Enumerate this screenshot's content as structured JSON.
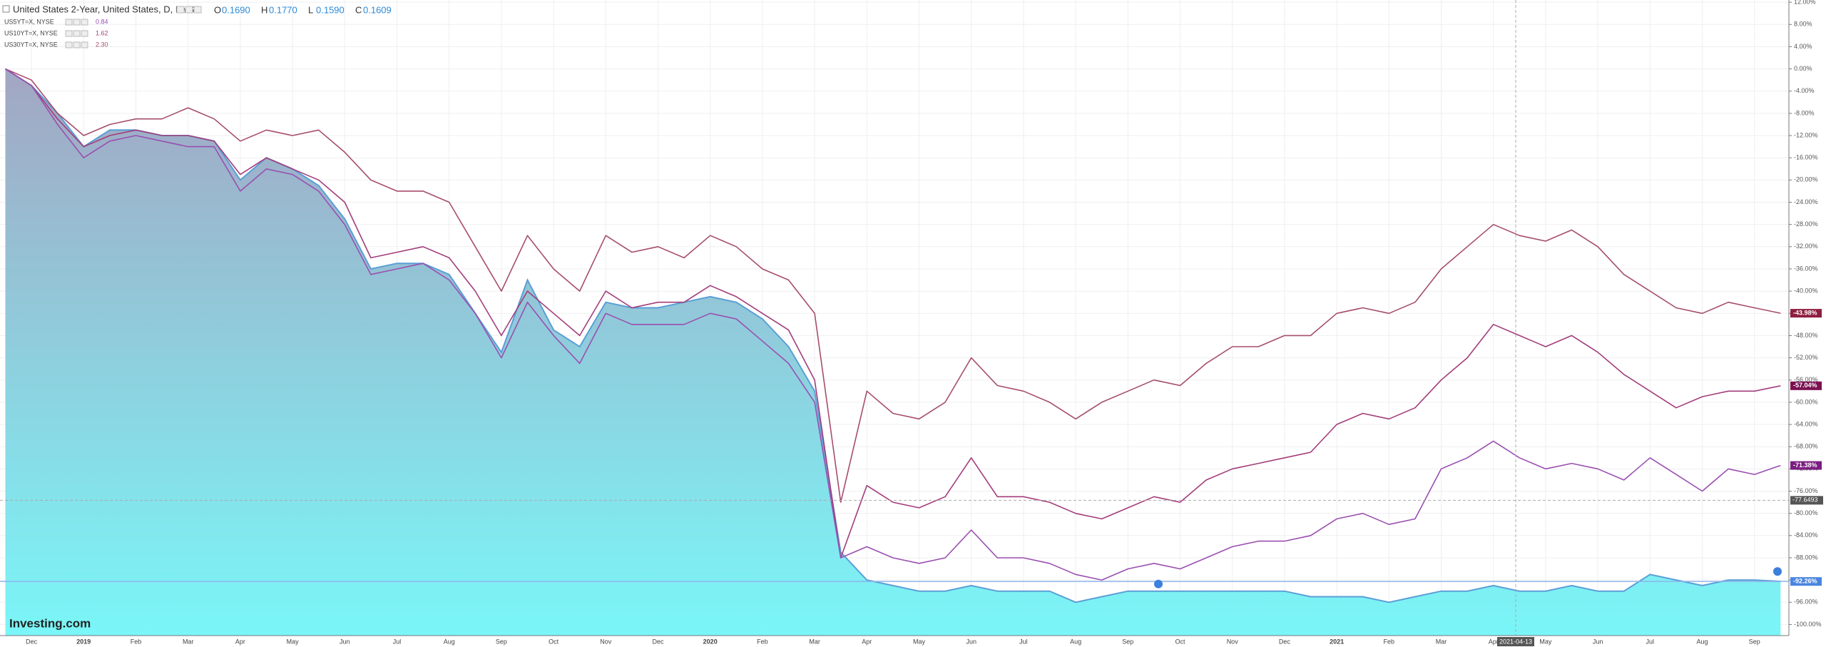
{
  "chart_data": {
    "type": "line",
    "title": "United States 2-Year, United States, D, NYSE",
    "ohlc": [
      {
        "key": "O",
        "value": "0.1690"
      },
      {
        "key": "H",
        "value": "0.1770"
      },
      {
        "key": "L",
        "value": "0.1590"
      },
      {
        "key": "C",
        "value": "0.1609"
      }
    ],
    "watermark": "Investing.com",
    "categories": [
      null,
      "Dec",
      null,
      "2019",
      null,
      "Feb",
      null,
      "Mar",
      null,
      "Apr",
      null,
      "May",
      null,
      "Jun",
      null,
      "Jul",
      null,
      "Aug",
      null,
      "Sep",
      null,
      "Oct",
      null,
      "Nov",
      null,
      "Dec",
      null,
      "2020",
      null,
      "Feb",
      null,
      "Mar",
      null,
      "Apr",
      null,
      "May",
      null,
      "Jun",
      null,
      "Jul",
      null,
      "Aug",
      null,
      "Sep",
      null,
      "Oct",
      null,
      "Nov",
      null,
      "Dec",
      null,
      "2021",
      null,
      "Feb",
      null,
      "Mar",
      null,
      "Apr",
      null,
      "May",
      null,
      "Jun",
      null,
      "Jul",
      null,
      "Aug",
      null,
      "Sep",
      null
    ],
    "series": [
      {
        "style": "area",
        "color": "#5b9fd6",
        "end_label": "-92.26%",
        "end_color": "#4a86e0",
        "values": [
          0,
          -3,
          -8,
          -14,
          -11,
          -11,
          -12,
          -12,
          -13,
          -20,
          -16,
          -18,
          -21,
          -27,
          -36,
          -35,
          -35,
          -37,
          -44,
          -51,
          -38,
          -47,
          -50,
          -42,
          -43,
          -43,
          -42,
          -41,
          -42,
          -45,
          -50,
          -58,
          -87,
          -92,
          -93,
          -94,
          -94,
          -93,
          -94,
          -94,
          -94,
          -96,
          -95,
          -94,
          -94,
          -94,
          -94,
          -94,
          -94,
          -94,
          -95,
          -95,
          -95,
          -96,
          -95,
          -94,
          -94,
          -93,
          -94,
          -94,
          -93,
          -94,
          -94,
          -91,
          -92,
          -93,
          -92,
          -92,
          -92.26
        ]
      },
      {
        "name": "US30YT=X, NYSE",
        "last": "2.30",
        "color": "#a64d6e",
        "end_label": "-43.98%",
        "end_color": "#8e1d3f",
        "values": [
          0,
          -2,
          -8,
          -12,
          -10,
          -9,
          -9,
          -7,
          -9,
          -13,
          -11,
          -12,
          -11,
          -15,
          -20,
          -22,
          -22,
          -24,
          -32,
          -40,
          -30,
          -36,
          -40,
          -30,
          -33,
          -32,
          -34,
          -30,
          -32,
          -36,
          -38,
          -44,
          -78,
          -58,
          -62,
          -63,
          -60,
          -52,
          -57,
          -58,
          -60,
          -63,
          -60,
          -58,
          -56,
          -57,
          -53,
          -50,
          -50,
          -48,
          -48,
          -44,
          -43,
          -44,
          -42,
          -36,
          -32,
          -28,
          -30,
          -31,
          -29,
          -32,
          -37,
          -40,
          -43,
          -44,
          -42,
          -43,
          -43.98
        ]
      },
      {
        "name": "US10YT=X, NYSE",
        "last": "1.62",
        "color": "#a33d7a",
        "end_label": "-57.04%",
        "end_color": "#7b1050",
        "values": [
          0,
          -3,
          -9,
          -14,
          -12,
          -11,
          -12,
          -12,
          -13,
          -19,
          -16,
          -18,
          -20,
          -24,
          -34,
          -33,
          -32,
          -34,
          -40,
          -48,
          -40,
          -44,
          -48,
          -40,
          -43,
          -42,
          -42,
          -39,
          -41,
          -44,
          -47,
          -56,
          -88,
          -75,
          -78,
          -79,
          -77,
          -70,
          -77,
          -77,
          -78,
          -80,
          -81,
          -79,
          -77,
          -78,
          -74,
          -72,
          -71,
          -70,
          -69,
          -64,
          -62,
          -63,
          -61,
          -56,
          -52,
          -46,
          -48,
          -50,
          -48,
          -51,
          -55,
          -58,
          -61,
          -59,
          -58,
          -58,
          -57.04
        ]
      },
      {
        "name": "US5YT=X, NYSE",
        "last": "0.84",
        "color": "#9a4fb0",
        "end_label": "-71.38%",
        "end_color": "#7a1d80",
        "values": [
          0,
          -3,
          -10,
          -16,
          -13,
          -12,
          -13,
          -14,
          -14,
          -22,
          -18,
          -19,
          -22,
          -28,
          -37,
          -36,
          -35,
          -38,
          -44,
          -52,
          -42,
          -48,
          -53,
          -44,
          -46,
          -46,
          -46,
          -44,
          -45,
          -49,
          -53,
          -60,
          -88,
          -86,
          -88,
          -89,
          -88,
          -83,
          -88,
          -88,
          -89,
          -91,
          -92,
          -90,
          -89,
          -90,
          -88,
          -86,
          -85,
          -85,
          -84,
          -81,
          -80,
          -82,
          -81,
          -72,
          -70,
          -67,
          -70,
          -72,
          -71,
          -72,
          -74,
          -70,
          -73,
          -76,
          -72,
          -73,
          -71.38
        ]
      }
    ],
    "crosshair": {
      "date": "2021-04-13",
      "value": -77.6493
    },
    "ylim": [
      -102,
      12.4
    ],
    "yticks": [
      {
        "value": 12,
        "label": "12.00%"
      },
      {
        "value": 8,
        "label": "8.00%"
      },
      {
        "value": 4,
        "label": "4.00%"
      },
      {
        "value": 0,
        "label": "0.00%"
      },
      {
        "value": -4,
        "label": "-4.00%"
      },
      {
        "value": -8,
        "label": "-8.00%"
      },
      {
        "value": -12,
        "label": "-12.00%"
      },
      {
        "value": -16,
        "label": "-16.00%"
      },
      {
        "value": -20,
        "label": "-20.00%"
      },
      {
        "value": -24,
        "label": "-24.00%"
      },
      {
        "value": -28,
        "label": "-28.00%"
      },
      {
        "value": -32,
        "label": "-32.00%"
      },
      {
        "value": -36,
        "label": "-36.00%"
      },
      {
        "value": -40,
        "label": "-40.00%"
      },
      {
        "value": -44,
        "label": "-44.00%"
      },
      {
        "value": -48,
        "label": "-48.00%"
      },
      {
        "value": -52,
        "label": "-52.00%"
      },
      {
        "value": -56,
        "label": "-56.00%"
      },
      {
        "value": -60,
        "label": "-60.00%"
      },
      {
        "value": -64,
        "label": "-64.00%"
      },
      {
        "value": -68,
        "label": "-68.00%"
      },
      {
        "value": -72,
        "label": "-72.00%"
      },
      {
        "value": -76,
        "label": "-76.00%"
      },
      {
        "value": -80,
        "label": "-80.00%"
      },
      {
        "value": -84,
        "label": "-84.00%"
      },
      {
        "value": -88,
        "label": "-88.00%"
      },
      {
        "value": -92,
        "label": "-92.00%"
      },
      {
        "value": -96,
        "label": "-96.00%"
      },
      {
        "value": -100,
        "label": "-100.00%"
      }
    ],
    "grid": true
  }
}
